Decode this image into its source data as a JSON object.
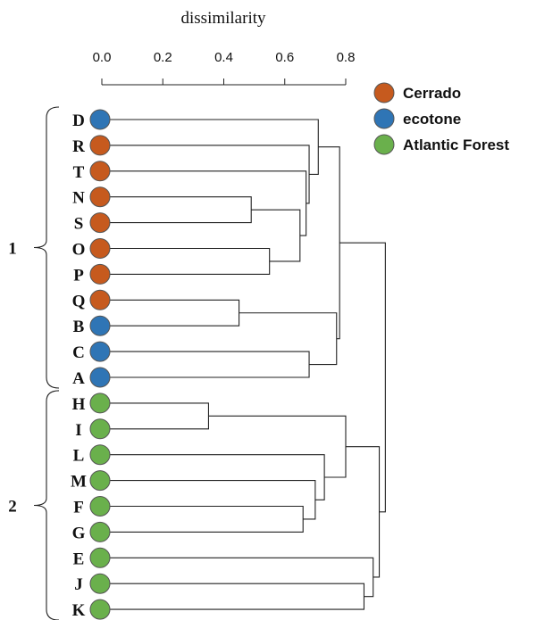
{
  "axis": {
    "title": "dissimilarity",
    "range": [
      0.0,
      0.8
    ],
    "ticks": [
      {
        "value": 0.0,
        "label": "0.0"
      },
      {
        "value": 0.2,
        "label": "0.2"
      },
      {
        "value": 0.4,
        "label": "0.4"
      },
      {
        "value": 0.6,
        "label": "0.6"
      },
      {
        "value": 0.8,
        "label": "0.8"
      }
    ]
  },
  "legend": [
    {
      "label": "Cerrado",
      "color": "#c65a1e"
    },
    {
      "label": "ecotone",
      "color": "#2f75b5"
    },
    {
      "label": "Atlantic Forest",
      "color": "#6ab04c"
    }
  ],
  "leaves": [
    {
      "label": "D",
      "group": "ecotone"
    },
    {
      "label": "R",
      "group": "Cerrado"
    },
    {
      "label": "T",
      "group": "Cerrado"
    },
    {
      "label": "N",
      "group": "Cerrado"
    },
    {
      "label": "S",
      "group": "Cerrado"
    },
    {
      "label": "O",
      "group": "Cerrado"
    },
    {
      "label": "P",
      "group": "Cerrado"
    },
    {
      "label": "Q",
      "group": "Cerrado"
    },
    {
      "label": "B",
      "group": "ecotone"
    },
    {
      "label": "C",
      "group": "ecotone"
    },
    {
      "label": "A",
      "group": "ecotone"
    },
    {
      "label": "H",
      "group": "Atlantic Forest"
    },
    {
      "label": "I",
      "group": "Atlantic Forest"
    },
    {
      "label": "L",
      "group": "Atlantic Forest"
    },
    {
      "label": "M",
      "group": "Atlantic Forest"
    },
    {
      "label": "F",
      "group": "Atlantic Forest"
    },
    {
      "label": "G",
      "group": "Atlantic Forest"
    },
    {
      "label": "E",
      "group": "Atlantic Forest"
    },
    {
      "label": "J",
      "group": "Atlantic Forest"
    },
    {
      "label": "K",
      "group": "Atlantic Forest"
    }
  ],
  "merges": [
    {
      "left": "N",
      "right": "S",
      "height": 0.49
    },
    {
      "left": "O",
      "right": "P",
      "height": 0.55
    },
    {
      "left": "NS",
      "right": "OP",
      "height": 0.65
    },
    {
      "left": "T",
      "right": "NSOP",
      "height": 0.67
    },
    {
      "left": "R",
      "right": "TNSOP",
      "height": 0.68
    },
    {
      "left": "D",
      "right": "RTNSOP",
      "height": 0.71
    },
    {
      "left": "Q",
      "right": "B",
      "height": 0.45
    },
    {
      "left": "C",
      "right": "A",
      "height": 0.68
    },
    {
      "left": "QB",
      "right": "CA",
      "height": 0.77
    },
    {
      "left": "DRTNSOP",
      "right": "QBCA",
      "height": 0.78
    },
    {
      "left": "H",
      "right": "I",
      "height": 0.35
    },
    {
      "left": "F",
      "right": "G",
      "height": 0.66
    },
    {
      "left": "M",
      "right": "FG",
      "height": 0.7
    },
    {
      "left": "L",
      "right": "MFG",
      "height": 0.73
    },
    {
      "left": "HI",
      "right": "LMFG",
      "height": 0.8
    },
    {
      "left": "J",
      "right": "K",
      "height": 0.86
    },
    {
      "left": "E",
      "right": "JK",
      "height": 0.89
    },
    {
      "left": "HILMFG",
      "right": "EJK",
      "height": 0.91
    },
    {
      "left": "cluster1",
      "right": "cluster2",
      "height": 0.93
    }
  ],
  "groups": [
    {
      "label": "1",
      "first": "D",
      "last": "A"
    },
    {
      "label": "2",
      "first": "H",
      "last": "K"
    }
  ]
}
